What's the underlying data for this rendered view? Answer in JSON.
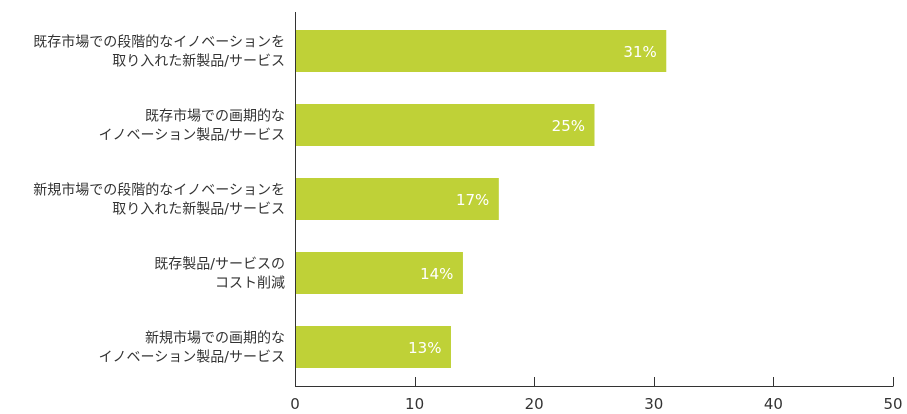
{
  "chart_data": {
    "type": "bar",
    "orientation": "horizontal",
    "categories": [
      [
        "既存市場での段階的なイノベーションを",
        "取り入れた新製品/サービス"
      ],
      [
        "既存市場での画期的な",
        "イノベーション製品/サービス"
      ],
      [
        "新規市場での段階的なイノベーションを",
        "取り入れた新製品/サービス"
      ],
      [
        "既存製品/サービスの",
        "コスト削減"
      ],
      [
        "新規市場での画期的な",
        "イノベーション製品/サービス"
      ]
    ],
    "values": [
      31,
      25,
      17,
      14,
      13
    ],
    "value_labels": [
      "31%",
      "25%",
      "17%",
      "14%",
      "13%"
    ],
    "xlim": [
      0,
      50
    ],
    "xticks": [
      0,
      10,
      20,
      30,
      40,
      50
    ],
    "xtick_labels": [
      "0",
      "10",
      "20",
      "30",
      "40",
      "50"
    ],
    "title": "",
    "xlabel": "",
    "ylabel": "",
    "grid": false,
    "bar_color": "#bfd137",
    "label_color": "#ffffff",
    "axis_color": "#333333"
  }
}
